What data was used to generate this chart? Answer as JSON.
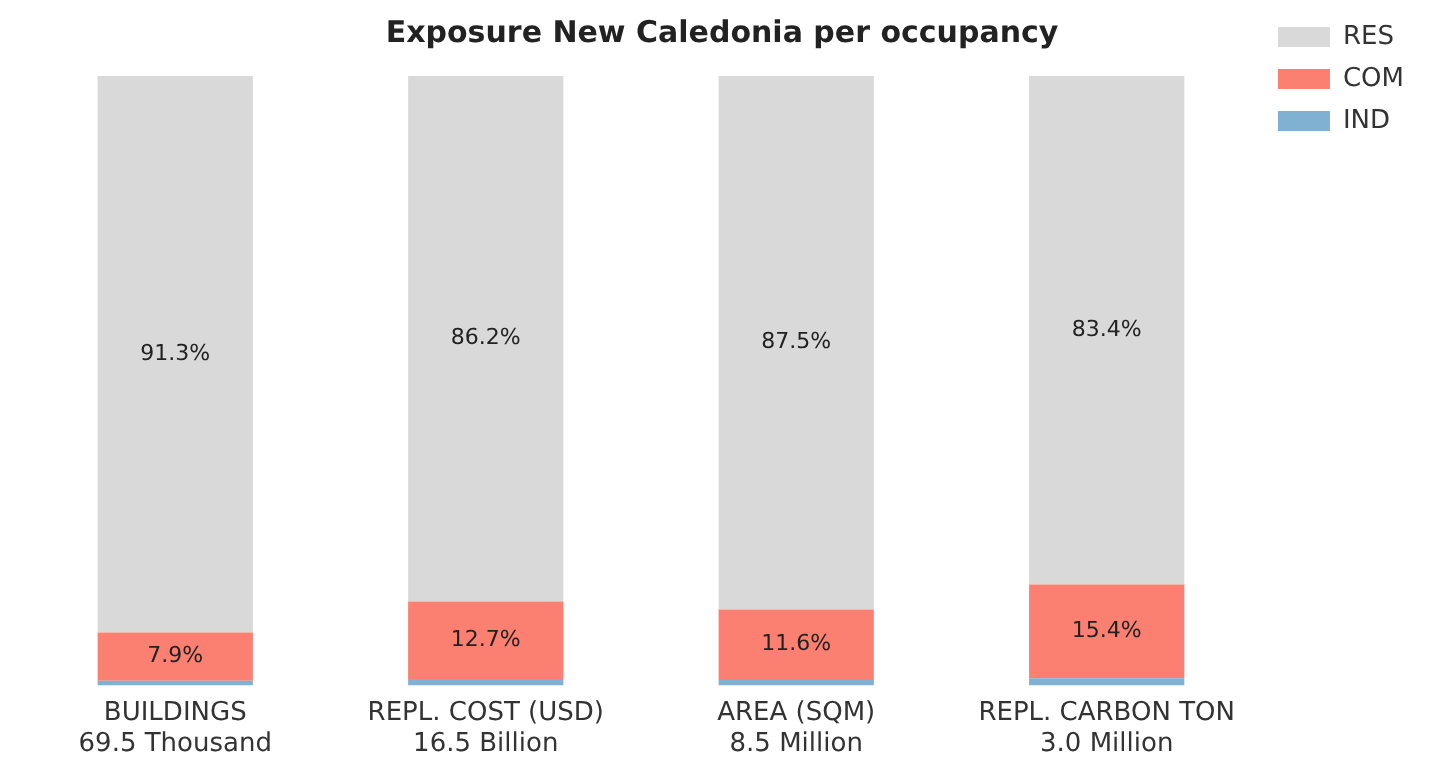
{
  "chart_data": {
    "type": "bar",
    "title": "Exposure New Caledonia per occupancy",
    "stacked": true,
    "legend": "top right",
    "categories": [
      "BUILDINGS\n69.5 Thousand",
      "REPL. COST (USD)\n16.5 Billion",
      "AREA (SQM)\n8.5 Million",
      "REPL. CARBON TON\n3.0 Million"
    ],
    "series": [
      {
        "name": "IND",
        "color": "#80b1d3",
        "values": [
          0.8,
          1.1,
          0.9,
          1.2
        ],
        "value_labels": [
          null,
          null,
          null,
          null
        ]
      },
      {
        "name": "COM",
        "color": "#fb8072",
        "values": [
          7.9,
          12.7,
          11.6,
          15.4
        ],
        "value_labels": [
          "7.9%",
          "12.7%",
          "11.6%",
          "15.4%"
        ]
      },
      {
        "name": "RES",
        "color": "#d9d9d9",
        "values": [
          91.3,
          86.2,
          87.5,
          83.4
        ],
        "value_labels": [
          "91.3%",
          "86.2%",
          "87.5%",
          "83.4%"
        ]
      }
    ]
  }
}
